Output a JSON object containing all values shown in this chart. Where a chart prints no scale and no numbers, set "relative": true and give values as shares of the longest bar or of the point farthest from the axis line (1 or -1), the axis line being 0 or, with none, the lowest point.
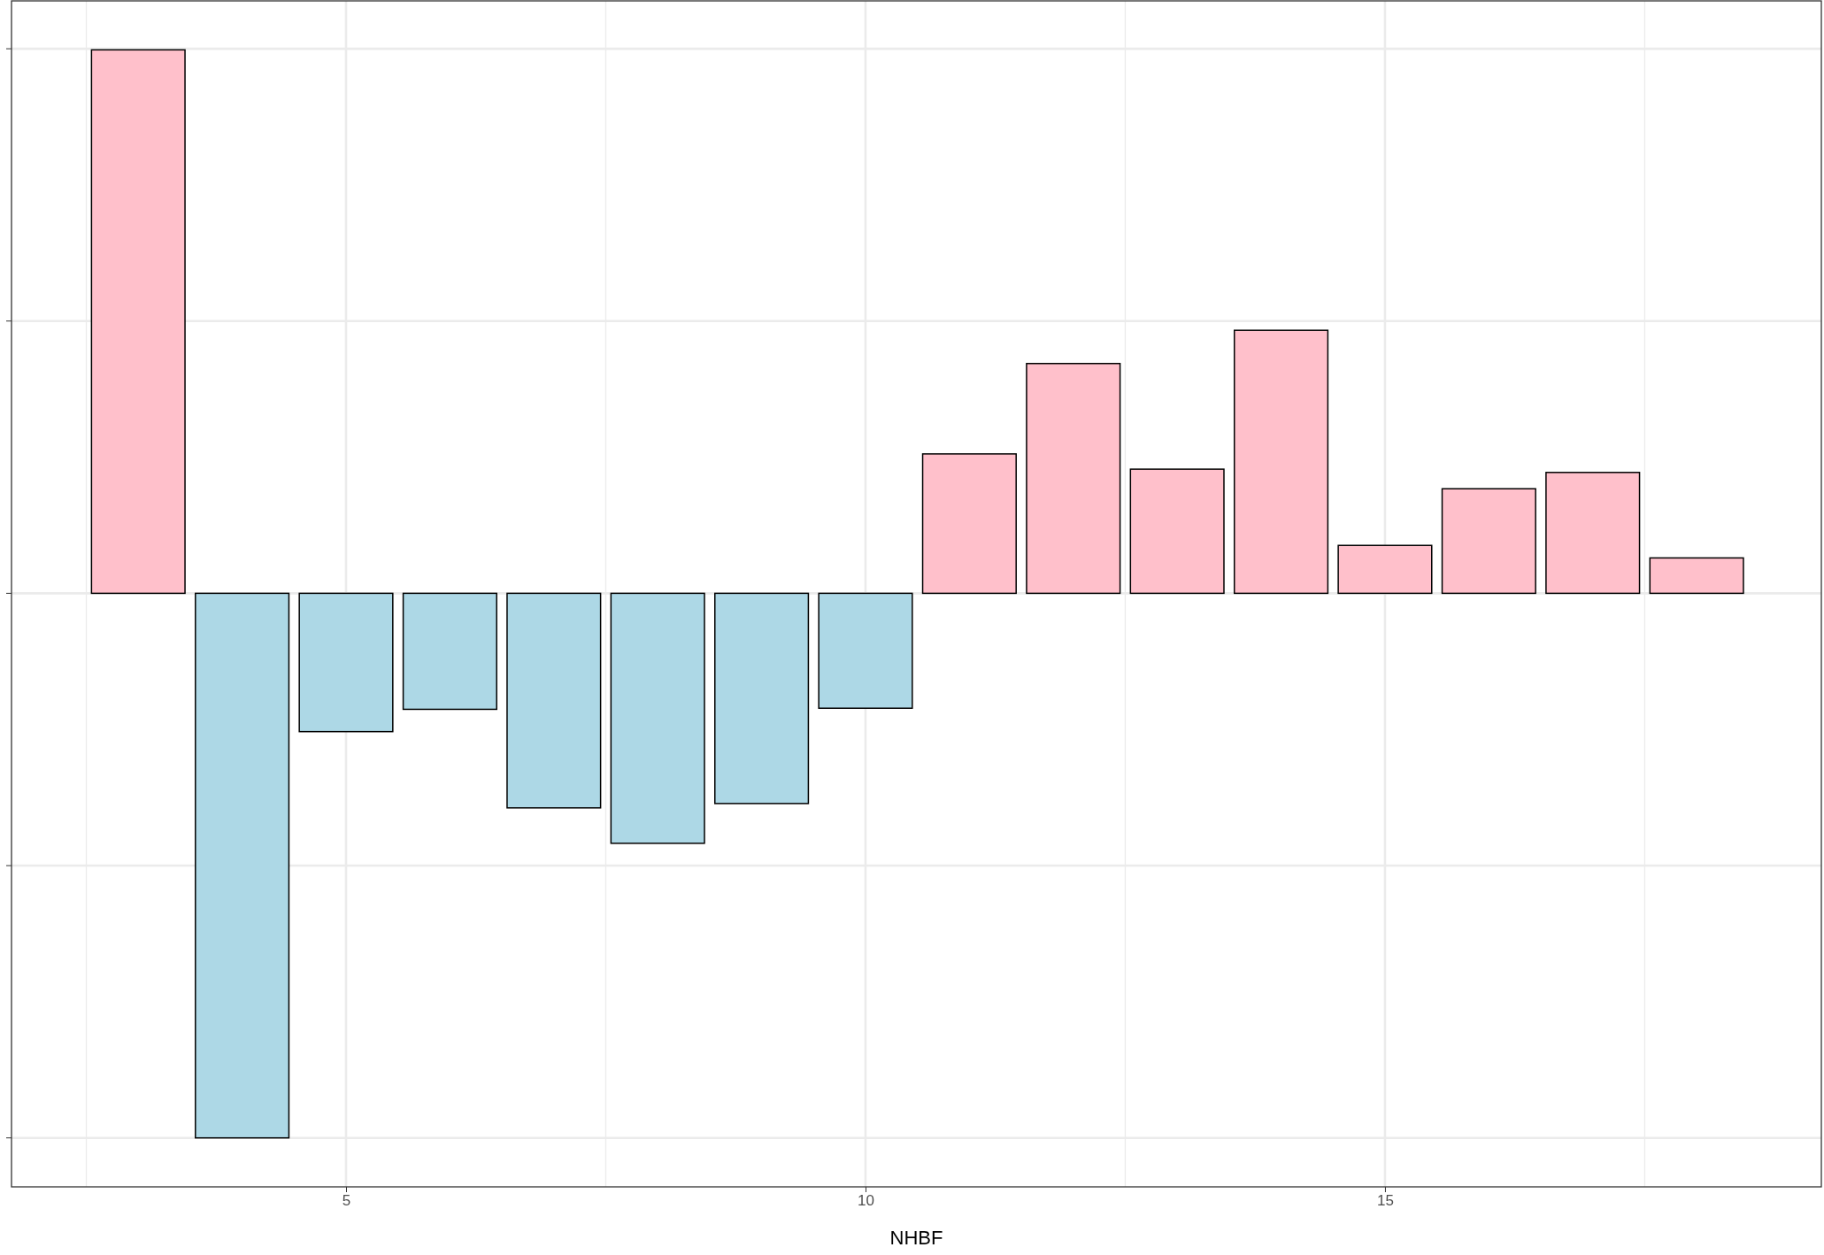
{
  "chart_data": {
    "type": "bar",
    "xlabel": "NHBF",
    "relative": true,
    "x": [
      3,
      4,
      5,
      6,
      7,
      8,
      9,
      10,
      11,
      12,
      13,
      14,
      15,
      16,
      17,
      18
    ],
    "values": [
      0.998,
      -1,
      -0.254,
      -0.213,
      -0.394,
      -0.459,
      -0.386,
      -0.211,
      0.256,
      0.422,
      0.228,
      0.483,
      0.088,
      0.192,
      0.222,
      0.065
    ],
    "colors": [
      "#ffc0cb",
      "#add8e6",
      "#add8e6",
      "#add8e6",
      "#add8e6",
      "#add8e6",
      "#add8e6",
      "#add8e6",
      "#ffc0cb",
      "#ffc0cb",
      "#ffc0cb",
      "#ffc0cb",
      "#ffc0cb",
      "#ffc0cb",
      "#ffc0cb",
      "#ffc0cb"
    ],
    "xlim": [
      1.78,
      19.2
    ],
    "xticks": [
      5,
      10,
      15
    ],
    "grid": true,
    "tick_labels": "x"
  }
}
